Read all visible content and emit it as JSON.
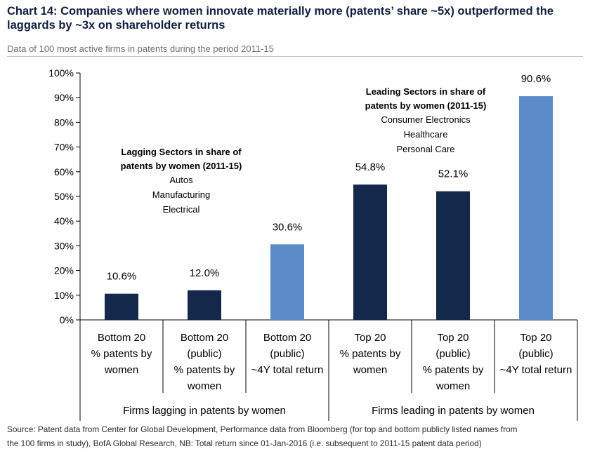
{
  "header": {
    "title_line1": "Chart 14: Companies where women innovate materially more (patents’ share ~5x) outperformed the",
    "title_line2": "laggards by ~3x on shareholder returns",
    "subtitle": "Data of 100 most active firms in patents during the period 2011-15"
  },
  "footer": {
    "source_line1": "Source: Patent data from Center for Global Development, Performance data from Bloomberg (for top and bottom publicly listed names from",
    "source_line2": "the 100 firms in study), BofA Global Research, NB: Total return since 01-Jan-2016 (i.e. subsequent to 2011-15 patent data period)"
  },
  "chart_data": {
    "type": "bar",
    "ylim": [
      0,
      100
    ],
    "ytick_values": [
      0,
      10,
      20,
      30,
      40,
      50,
      60,
      70,
      80,
      90,
      100
    ],
    "ytick_labels": [
      "0%",
      "10%",
      "20%",
      "30%",
      "40%",
      "50%",
      "60%",
      "70%",
      "80%",
      "90%",
      "100%"
    ],
    "grid": false,
    "bars": [
      {
        "category_lines": [
          "Bottom 20",
          "% patents by",
          "women"
        ],
        "value": 10.6,
        "label": "10.6%",
        "color": "#14284b"
      },
      {
        "category_lines": [
          "Bottom 20",
          "(public)",
          "% patents by",
          "women"
        ],
        "value": 12.0,
        "label": "12.0%",
        "color": "#14284b"
      },
      {
        "category_lines": [
          "Bottom 20",
          "(public)",
          "~4Y total return"
        ],
        "value": 30.6,
        "label": "30.6%",
        "color": "#5b8bc8"
      },
      {
        "category_lines": [
          "Top 20",
          "% patents by",
          "women"
        ],
        "value": 54.8,
        "label": "54.8%",
        "color": "#14284b"
      },
      {
        "category_lines": [
          "Top 20",
          "(public)",
          "% patents by",
          "women"
        ],
        "value": 52.1,
        "label": "52.1%",
        "color": "#14284b"
      },
      {
        "category_lines": [
          "Top 20",
          "(public)",
          "~4Y total return"
        ],
        "value": 90.6,
        "label": "90.6%",
        "color": "#5b8bc8"
      }
    ],
    "groups": [
      {
        "label": "Firms lagging in patents by women",
        "span": 3
      },
      {
        "label": "Firms leading in patents by women",
        "span": 3
      }
    ],
    "annotations": [
      {
        "name": "lagging-sectors-note",
        "bold_lines": [
          "Lagging Sectors in share of",
          "patents by women (2011-15)"
        ],
        "lines": [
          "Autos",
          "Manufacturing",
          "Electrical"
        ]
      },
      {
        "name": "leading-sectors-note",
        "bold_lines": [
          "Leading Sectors in share of",
          "patents by women (2011-15)"
        ],
        "lines": [
          "Consumer Electronics",
          "Healthcare",
          "Personal Care"
        ]
      }
    ]
  }
}
